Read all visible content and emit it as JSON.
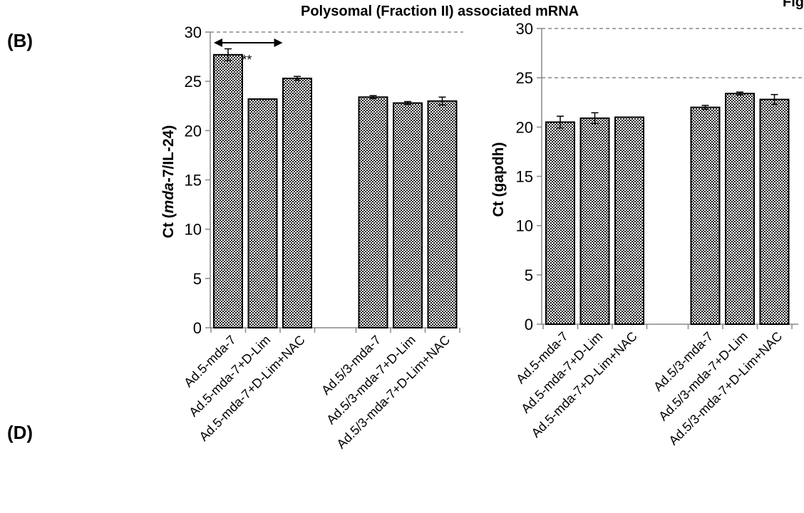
{
  "page": {
    "title": "Polysomal (Fraction II) associated mRNA",
    "corner_text": "Fig",
    "panel_b": "(B)",
    "panel_d": "(D)"
  },
  "chart_data": [
    {
      "type": "bar",
      "ylabel_parts": [
        "Ct (",
        "mda",
        "-7/IL-24)"
      ],
      "ylim": [
        0,
        30
      ],
      "yticks": [
        0,
        5,
        10,
        15,
        20,
        25,
        30
      ],
      "groups": [
        [
          "Ad.5-mda-7",
          "Ad.5-mda-7+D-Lim",
          "Ad.5-mda-7+D-Lim+NAC"
        ],
        [
          "Ad.5/3-mda-7",
          "Ad.5/3-mda-7+D-Lim",
          "Ad.5/3-mda-7+D-Lim+NAC"
        ]
      ],
      "values": [
        [
          27.7,
          23.2,
          25.3
        ],
        [
          23.4,
          22.8,
          23.0
        ]
      ],
      "errors": [
        [
          0.6,
          0,
          0.2
        ],
        [
          0.15,
          0.15,
          0.4
        ]
      ],
      "reference_lines": [
        30
      ],
      "annotation": {
        "text": "**",
        "arrow_from_bar": 0,
        "arrow_to_bar": 1
      },
      "pattern": "dotted-checker",
      "grid": false
    },
    {
      "type": "bar",
      "ylabel": "Ct (gapdh)",
      "ylim": [
        0,
        30
      ],
      "yticks": [
        0,
        5,
        10,
        15,
        20,
        25,
        30
      ],
      "groups": [
        [
          "Ad.5-mda-7",
          "Ad.5-mda-7+D-Lim",
          "Ad.5-mda-7+D-Lim+NAC"
        ],
        [
          "Ad.5/3-mda-7",
          "Ad.5/3-mda-7+D-Lim",
          "Ad.5/3-mda-7+D-Lim+NAC"
        ]
      ],
      "values": [
        [
          20.5,
          20.9,
          21.0
        ],
        [
          22.0,
          23.4,
          22.8
        ]
      ],
      "errors": [
        [
          0.6,
          0.55,
          0
        ],
        [
          0.2,
          0.15,
          0.5
        ]
      ],
      "reference_lines": [
        30,
        25
      ],
      "pattern": "dotted-checker",
      "grid": false
    }
  ]
}
